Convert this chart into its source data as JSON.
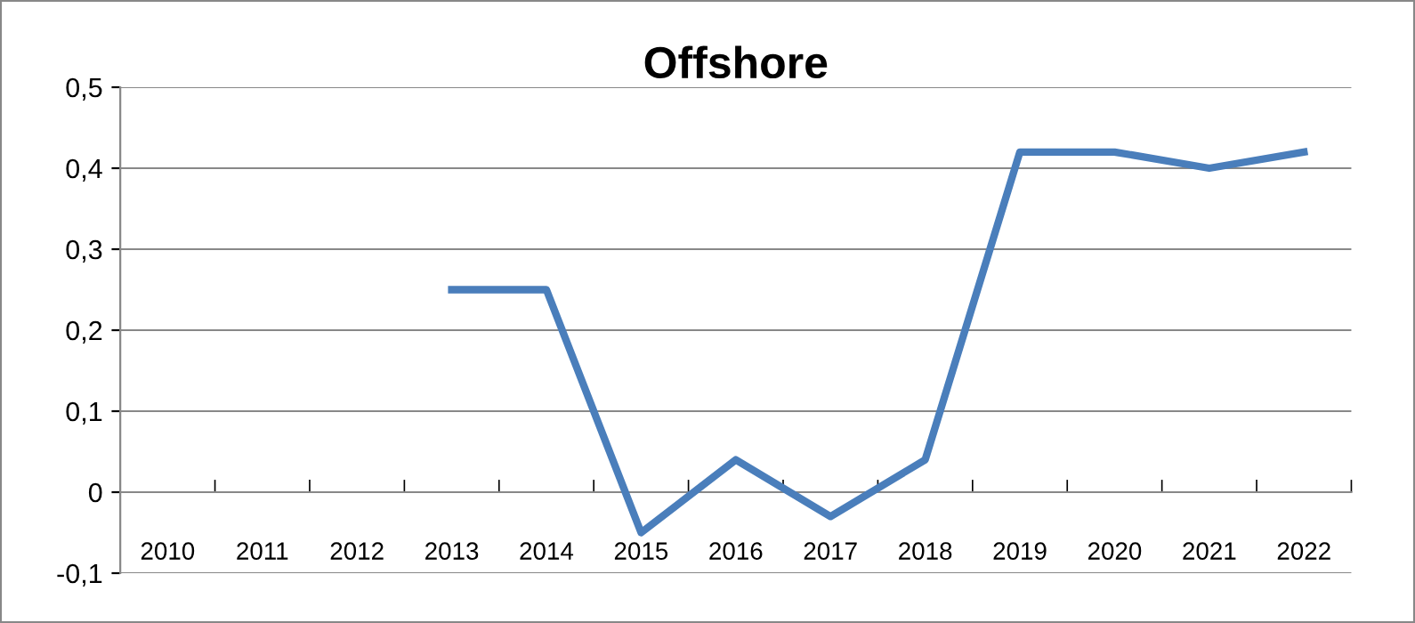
{
  "chart_data": {
    "type": "line",
    "title": "Offshore",
    "categories": [
      "2010",
      "2011",
      "2012",
      "2013",
      "2014",
      "2015",
      "2016",
      "2017",
      "2018",
      "2019",
      "2020",
      "2021",
      "2022"
    ],
    "series": [
      {
        "color": "#4a7ebb",
        "values": [
          null,
          null,
          null,
          0.25,
          0.25,
          -0.05,
          0.04,
          -0.03,
          0.04,
          0.42,
          0.42,
          0.4,
          0.42
        ]
      }
    ],
    "ylim": [
      -0.1,
      0.5
    ],
    "yticks": [
      {
        "value": -0.1,
        "label": "-0,1"
      },
      0,
      {
        "value": 0.1,
        "label": "0,1"
      },
      {
        "value": 0.2,
        "label": "0,2"
      },
      {
        "value": 0.3,
        "label": "0,3"
      },
      {
        "value": 0.4,
        "label": "0,4"
      },
      {
        "value": 0.5,
        "label": "0,5"
      }
    ],
    "grid": "y",
    "marker": "none",
    "line_style": "solid"
  }
}
